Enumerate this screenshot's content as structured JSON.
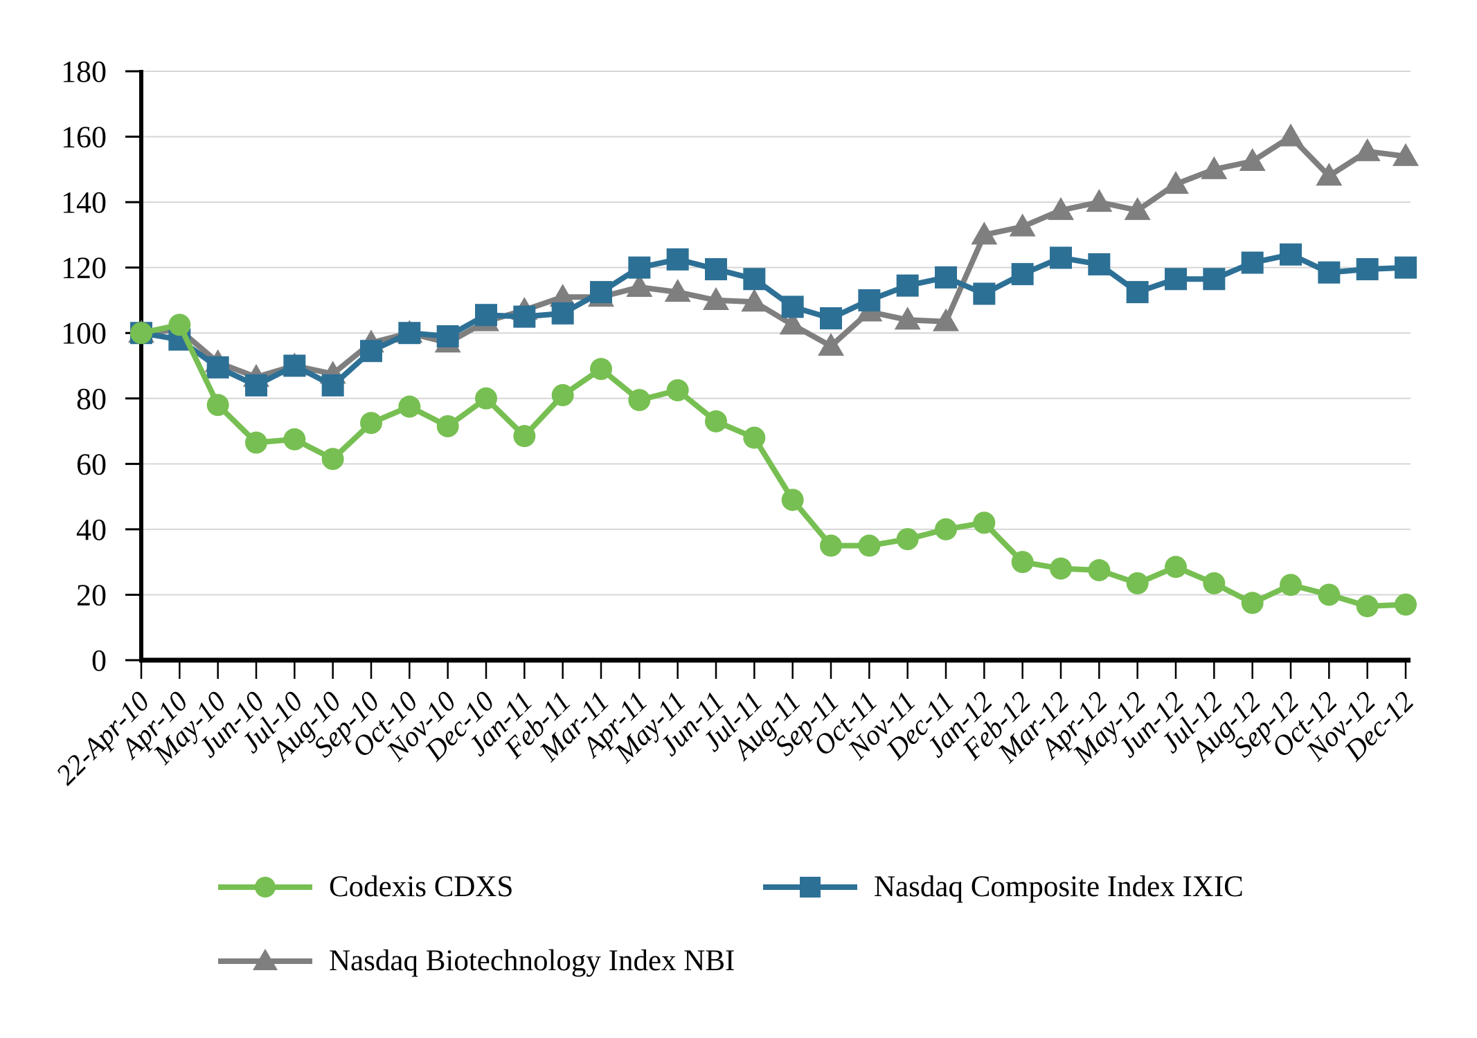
{
  "chart_data": {
    "type": "line",
    "title": "",
    "xlabel": "",
    "ylabel": "",
    "ylim": [
      0,
      180
    ],
    "yticks": [
      0,
      20,
      40,
      60,
      80,
      100,
      120,
      140,
      160,
      180
    ],
    "grid": "horizontal",
    "legend_position": "bottom",
    "categories": [
      "22-Apr-10",
      "Apr-10",
      "May-10",
      "Jun-10",
      "Jul-10",
      "Aug-10",
      "Sep-10",
      "Oct-10",
      "Nov-10",
      "Dec-10",
      "Jan-11",
      "Feb-11",
      "Mar-11",
      "Apr-11",
      "May-11",
      "Jun-11",
      "Jul-11",
      "Aug-11",
      "Sep-11",
      "Oct-11",
      "Nov-11",
      "Dec-11",
      "Jan-12",
      "Feb-12",
      "Mar-12",
      "Apr-12",
      "May-12",
      "Jun-12",
      "Jul-12",
      "Aug-12",
      "Sep-12",
      "Oct-12",
      "Nov-12",
      "Dec-12"
    ],
    "series": [
      {
        "name": "Codexis CDXS",
        "marker": "circle",
        "color": "#77bf52",
        "values": [
          100,
          102.5,
          78,
          66.5,
          67.5,
          61.5,
          72.5,
          77.5,
          71.5,
          80,
          68.5,
          81,
          89,
          79.5,
          82.5,
          73,
          68,
          49,
          35,
          35,
          37,
          40,
          42,
          30,
          28,
          27.5,
          23.5,
          28.5,
          23.5,
          17.5,
          23,
          20,
          16.5,
          17
        ]
      },
      {
        "name": "Nasdaq Composite Index IXIC",
        "marker": "square",
        "color": "#2d7096",
        "values": [
          100,
          98,
          89.5,
          84,
          90,
          84,
          94.5,
          100,
          99,
          105.5,
          105,
          106,
          112.5,
          120,
          122.5,
          119.5,
          116.5,
          108,
          104.5,
          110,
          114.5,
          117,
          112,
          118,
          123,
          121,
          112.5,
          116.5,
          116.5,
          121.5,
          124,
          118.5,
          119.5,
          120
        ]
      },
      {
        "name": "Nasdaq Biotechnology Index NBI",
        "marker": "triangle",
        "color": "#7f7f7f",
        "values": [
          100,
          101,
          91,
          86.5,
          90,
          87.5,
          97,
          100,
          97,
          103.5,
          107,
          111,
          111,
          114,
          112.5,
          110,
          109.5,
          102.5,
          96,
          106.5,
          104,
          103.5,
          130,
          132.5,
          137.5,
          140,
          137.5,
          145.5,
          150,
          152.5,
          160,
          148,
          155.5,
          154
        ]
      }
    ]
  },
  "colors": {
    "background": "#ffffff",
    "gridline": "#d6d6d6",
    "axis": "#000000",
    "tick_label": "#000000",
    "legend_text": "#000000",
    "series_green": "#77bf52",
    "series_blue": "#2d7096",
    "series_gray": "#7f7f7f"
  }
}
